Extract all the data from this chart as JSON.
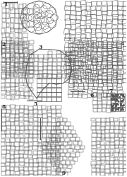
{
  "background_color": "#ffffff",
  "line_color": "#555555",
  "fig_width": 1.8,
  "fig_height": 2.5,
  "dpi": 100,
  "cell_lw": 0.35,
  "label_fontsize": 5.5
}
